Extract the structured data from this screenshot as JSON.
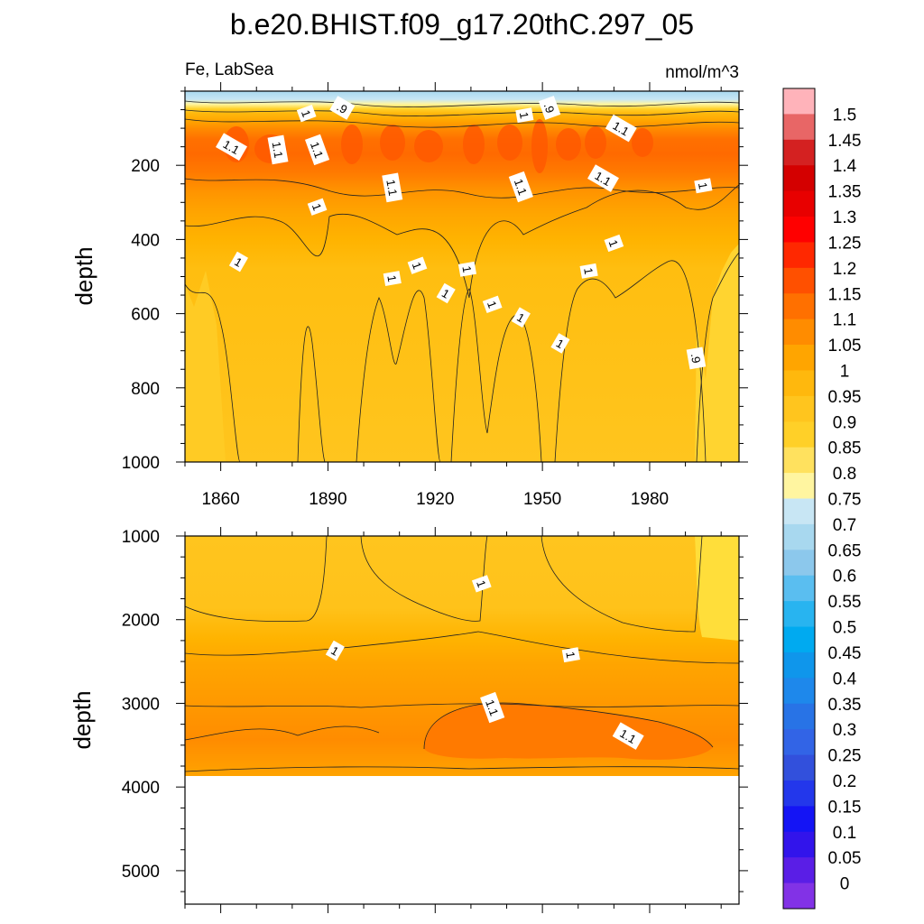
{
  "chart_data": {
    "type": "contour",
    "title": "b.e20.BHIST.f09_g17.20thC.297_05",
    "variable_label": "Fe, LabSea",
    "units_label": "nmol/m^3",
    "x_ticks": [
      1860,
      1890,
      1920,
      1950,
      1980
    ],
    "x_range": [
      1850,
      2005
    ],
    "panels": [
      {
        "name": "upper",
        "ylabel": "depth",
        "ylim": [
          0,
          1000
        ],
        "y_ticks": [
          200,
          400,
          600,
          800,
          1000
        ],
        "inline_labels": [
          {
            "text": "1",
            "year": 1884,
            "depth": 60
          },
          {
            "text": ".9",
            "year": 1894,
            "depth": 45
          },
          {
            "text": "1",
            "year": 1945,
            "depth": 65
          },
          {
            "text": ".9",
            "year": 1952,
            "depth": 45
          },
          {
            "text": "1.1",
            "year": 1863,
            "depth": 150
          },
          {
            "text": "1.1",
            "year": 1876,
            "depth": 158
          },
          {
            "text": "1.1",
            "year": 1887,
            "depth": 158
          },
          {
            "text": "1.1",
            "year": 1972,
            "depth": 100
          },
          {
            "text": "1.1",
            "year": 1908,
            "depth": 260
          },
          {
            "text": "1.1",
            "year": 1944,
            "depth": 258
          },
          {
            "text": "1.1",
            "year": 1967,
            "depth": 235
          },
          {
            "text": "1",
            "year": 1995,
            "depth": 255
          },
          {
            "text": "1",
            "year": 1887,
            "depth": 312
          },
          {
            "text": "1",
            "year": 1865,
            "depth": 460
          },
          {
            "text": "1",
            "year": 1908,
            "depth": 505
          },
          {
            "text": "1",
            "year": 1915,
            "depth": 470
          },
          {
            "text": "1",
            "year": 1923,
            "depth": 545
          },
          {
            "text": "1",
            "year": 1929,
            "depth": 480
          },
          {
            "text": "1",
            "year": 1936,
            "depth": 575
          },
          {
            "text": "1",
            "year": 1944,
            "depth": 610
          },
          {
            "text": "1",
            "year": 1963,
            "depth": 485
          },
          {
            "text": "1",
            "year": 1970,
            "depth": 410
          },
          {
            "text": "1",
            "year": 1955,
            "depth": 680
          },
          {
            "text": ".9",
            "year": 1993,
            "depth": 720
          }
        ]
      },
      {
        "name": "lower",
        "ylabel": "depth",
        "ylim": [
          1000,
          5400
        ],
        "y_ticks": [
          1000,
          2000,
          3000,
          4000,
          5000
        ],
        "data_bottom_depth": 3870,
        "inline_labels": [
          {
            "text": "1",
            "year": 1933,
            "depth": 1570
          },
          {
            "text": "1",
            "year": 1892,
            "depth": 2370
          },
          {
            "text": "1",
            "year": 1958,
            "depth": 2420
          },
          {
            "text": "1.1",
            "year": 1936,
            "depth": 3050
          },
          {
            "text": "1.1",
            "year": 1974,
            "depth": 3390
          }
        ]
      }
    ],
    "colorbar": {
      "labels": [
        "1.5",
        "1.45",
        "1.4",
        "1.35",
        "1.3",
        "1.25",
        "1.2",
        "1.15",
        "1.1",
        "1.05",
        "1",
        "0.95",
        "0.9",
        "0.85",
        "0.8",
        "0.75",
        "0.7",
        "0.65",
        "0.6",
        "0.55",
        "0.5",
        "0.45",
        "0.4",
        "0.35",
        "0.3",
        "0.25",
        "0.2",
        "0.15",
        "0.1",
        "0.05",
        "0"
      ],
      "colors": [
        "#FFB3BA",
        "#E86666",
        "#D42121",
        "#D40000",
        "#E80000",
        "#FF0000",
        "#FF2800",
        "#FF5000",
        "#FF7000",
        "#FF8C00",
        "#FFA500",
        "#FFB80D",
        "#FFC51E",
        "#FFD028",
        "#FFE15E",
        "#FFF5A0",
        "#C8E6F4",
        "#A8D8EF",
        "#8CC8EC",
        "#5ABEF0",
        "#28B4F0",
        "#00AAF0",
        "#0F96EB",
        "#1E88EB",
        "#2873E6",
        "#3264E6",
        "#3250DC",
        "#2337EB",
        "#1414F5",
        "#3214EB",
        "#5A1EE6",
        "#8232E6"
      ]
    }
  }
}
